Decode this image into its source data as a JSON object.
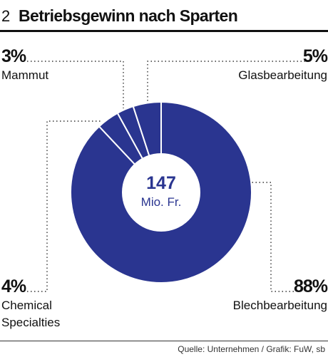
{
  "header": {
    "number": "2",
    "title": "Betriebsgewinn nach Sparten"
  },
  "source": "Quelle: Unternehmen / Grafik: FuW, sb",
  "colors": {
    "slice": "#2a3590",
    "separator": "#ffffff"
  },
  "chart_data": {
    "type": "pie",
    "style": "donut",
    "title": "Betriebsgewinn nach Sparten",
    "center_value": "147",
    "center_unit": "Mio. Fr.",
    "slices": [
      {
        "name": "Blechbearbeitung",
        "value": 88,
        "label": "88%"
      },
      {
        "name": "Chemical Specialties",
        "value": 4,
        "label": "4%"
      },
      {
        "name": "Mammut",
        "value": 3,
        "label": "3%"
      },
      {
        "name": "Glasbearbeitung",
        "value": 5,
        "label": "5%"
      }
    ]
  }
}
